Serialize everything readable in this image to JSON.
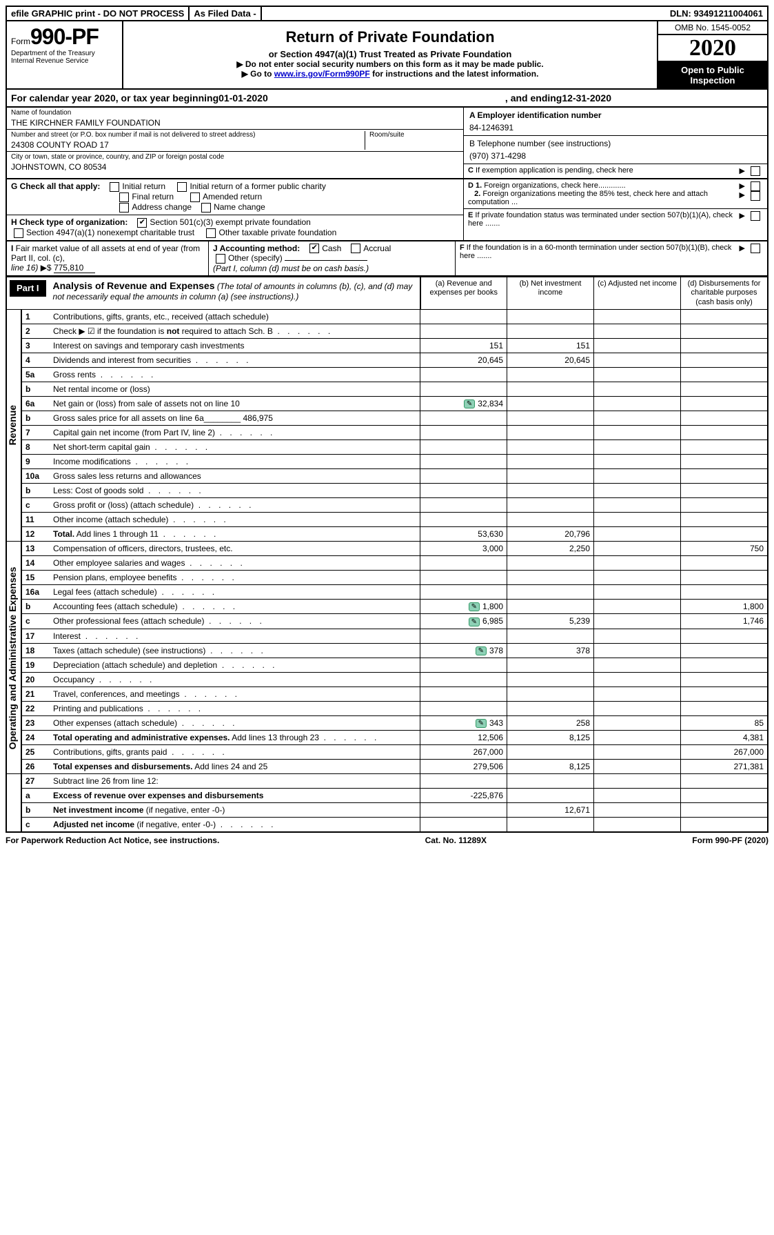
{
  "top": {
    "efile": "efile GRAPHIC print - DO NOT PROCESS",
    "asfiled": "As Filed Data -",
    "dln": "DLN: 93491211004061"
  },
  "form": {
    "prefix": "Form",
    "number": "990-PF",
    "dept": "Department of the Treasury",
    "irs": "Internal Revenue Service"
  },
  "header": {
    "title": "Return of Private Foundation",
    "sub": "or Section 4947(a)(1) Trust Treated as Private Foundation",
    "instr1": "▶ Do not enter social security numbers on this form as it may be made public.",
    "instr2_pre": "▶ Go to ",
    "instr2_link": "www.irs.gov/Form990PF",
    "instr2_post": " for instructions and the latest information.",
    "omb": "OMB No. 1545-0052",
    "year": "2020",
    "inspection": "Open to Public Inspection"
  },
  "cal": {
    "pre": "For calendar year 2020, or tax year beginning ",
    "begin": "01-01-2020",
    "mid": ", and ending ",
    "end": "12-31-2020"
  },
  "id": {
    "name_label": "Name of foundation",
    "name": "THE KIRCHNER FAMILY FOUNDATION",
    "addr_label": "Number and street (or P.O. box number if mail is not delivered to street address)",
    "addr": "24308 COUNTY ROAD 17",
    "room_label": "Room/suite",
    "city_label": "City or town, state or province, country, and ZIP or foreign postal code",
    "city": "JOHNSTOWN, CO  80534",
    "a_label": "A Employer identification number",
    "a_val": "84-1246391",
    "b_label": "B Telephone number (see instructions)",
    "b_val": "(970) 371-4298",
    "c_label": "C If exemption application is pending, check here"
  },
  "g": {
    "label": "G Check all that apply:",
    "opts": [
      "Initial return",
      "Initial return of a former public charity",
      "Final return",
      "Amended return",
      "Address change",
      "Name change"
    ]
  },
  "h": {
    "label": "H Check type of organization:",
    "sec501": "Section 501(c)(3) exempt private foundation",
    "sec4947": "Section 4947(a)(1) nonexempt charitable trust",
    "other_tax": "Other taxable private foundation"
  },
  "d_block": {
    "d1": "D 1. Foreign organizations, check here",
    "d2": "2. Foreign organizations meeting the 85% test, check here and attach computation ...",
    "e": "E If private foundation status was terminated under section 507(b)(1)(A), check here",
    "f": "F If the foundation is in a 60-month termination under section 507(b)(1)(B), check here"
  },
  "i_block": {
    "i_label": "I Fair market value of all assets at end of year (from Part II, col. (c), line 16)",
    "i_val": "775,810",
    "j_label": "J Accounting method:",
    "j_cash": "Cash",
    "j_accrual": "Accrual",
    "j_other": "Other (specify)",
    "j_note": "(Part I, column (d) must be on cash basis.)"
  },
  "part1": {
    "label": "Part I",
    "title": "Analysis of Revenue and Expenses",
    "note": "(The total of amounts in columns (b), (c), and (d) may not necessarily equal the amounts in column (a) (see instructions).)",
    "col_a": "(a) Revenue and expenses per books",
    "col_b": "(b) Net investment income",
    "col_c": "(c) Adjusted net income",
    "col_d": "(d) Disbursements for charitable purposes (cash basis only)"
  },
  "sections": {
    "revenue": "Revenue",
    "opex": "Operating and Administrative Expenses"
  },
  "rows": [
    {
      "n": "1",
      "d": "Contributions, gifts, grants, etc., received (attach schedule)",
      "a": "",
      "b": "",
      "c": "",
      "dd": ""
    },
    {
      "n": "2",
      "d": "Check ▶ ☑ if the foundation is <b>not</b> required to attach Sch. B",
      "dots": true,
      "a": "",
      "b": "",
      "c": "",
      "dd": ""
    },
    {
      "n": "3",
      "d": "Interest on savings and temporary cash investments",
      "a": "151",
      "b": "151",
      "c": "",
      "dd": ""
    },
    {
      "n": "4",
      "d": "Dividends and interest from securities",
      "dots": true,
      "a": "20,645",
      "b": "20,645",
      "c": "",
      "dd": ""
    },
    {
      "n": "5a",
      "d": "Gross rents",
      "dots": true,
      "a": "",
      "b": "",
      "c": "",
      "dd": ""
    },
    {
      "n": "b",
      "d": "Net rental income or (loss)",
      "a": "",
      "b": "",
      "c": "",
      "dd": ""
    },
    {
      "n": "6a",
      "d": "Net gain or (loss) from sale of assets not on line 10",
      "a": "32,834",
      "b": "",
      "c": "",
      "dd": "",
      "icon": true
    },
    {
      "n": "b",
      "d": "Gross sales price for all assets on line 6a________ 486,975",
      "a": "",
      "b": "",
      "c": "",
      "dd": ""
    },
    {
      "n": "7",
      "d": "Capital gain net income (from Part IV, line 2)",
      "dots": true,
      "a": "",
      "b": "",
      "c": "",
      "dd": ""
    },
    {
      "n": "8",
      "d": "Net short-term capital gain",
      "dots": true,
      "a": "",
      "b": "",
      "c": "",
      "dd": ""
    },
    {
      "n": "9",
      "d": "Income modifications",
      "dots": true,
      "a": "",
      "b": "",
      "c": "",
      "dd": ""
    },
    {
      "n": "10a",
      "d": "Gross sales less returns and allowances",
      "a": "",
      "b": "",
      "c": "",
      "dd": ""
    },
    {
      "n": "b",
      "d": "Less: Cost of goods sold",
      "dots": true,
      "a": "",
      "b": "",
      "c": "",
      "dd": ""
    },
    {
      "n": "c",
      "d": "Gross profit or (loss) (attach schedule)",
      "dots": true,
      "a": "",
      "b": "",
      "c": "",
      "dd": ""
    },
    {
      "n": "11",
      "d": "Other income (attach schedule)",
      "dots": true,
      "a": "",
      "b": "",
      "c": "",
      "dd": ""
    },
    {
      "n": "12",
      "d": "<b>Total.</b> Add lines 1 through 11",
      "dots": true,
      "a": "53,630",
      "b": "20,796",
      "c": "",
      "dd": ""
    }
  ],
  "exp_rows": [
    {
      "n": "13",
      "d": "Compensation of officers, directors, trustees, etc.",
      "a": "3,000",
      "b": "2,250",
      "c": "",
      "dd": "750"
    },
    {
      "n": "14",
      "d": "Other employee salaries and wages",
      "dots": true,
      "a": "",
      "b": "",
      "c": "",
      "dd": ""
    },
    {
      "n": "15",
      "d": "Pension plans, employee benefits",
      "dots": true,
      "a": "",
      "b": "",
      "c": "",
      "dd": ""
    },
    {
      "n": "16a",
      "d": "Legal fees (attach schedule)",
      "dots": true,
      "a": "",
      "b": "",
      "c": "",
      "dd": ""
    },
    {
      "n": "b",
      "d": "Accounting fees (attach schedule)",
      "dots": true,
      "a": "1,800",
      "b": "",
      "c": "",
      "dd": "1,800",
      "icon": true
    },
    {
      "n": "c",
      "d": "Other professional fees (attach schedule)",
      "dots": true,
      "a": "6,985",
      "b": "5,239",
      "c": "",
      "dd": "1,746",
      "icon": true
    },
    {
      "n": "17",
      "d": "Interest",
      "dots": true,
      "a": "",
      "b": "",
      "c": "",
      "dd": ""
    },
    {
      "n": "18",
      "d": "Taxes (attach schedule) (see instructions)",
      "dots": true,
      "a": "378",
      "b": "378",
      "c": "",
      "dd": "",
      "icon": true
    },
    {
      "n": "19",
      "d": "Depreciation (attach schedule) and depletion",
      "dots": true,
      "a": "",
      "b": "",
      "c": "",
      "dd": ""
    },
    {
      "n": "20",
      "d": "Occupancy",
      "dots": true,
      "a": "",
      "b": "",
      "c": "",
      "dd": ""
    },
    {
      "n": "21",
      "d": "Travel, conferences, and meetings",
      "dots": true,
      "a": "",
      "b": "",
      "c": "",
      "dd": ""
    },
    {
      "n": "22",
      "d": "Printing and publications",
      "dots": true,
      "a": "",
      "b": "",
      "c": "",
      "dd": ""
    },
    {
      "n": "23",
      "d": "Other expenses (attach schedule)",
      "dots": true,
      "a": "343",
      "b": "258",
      "c": "",
      "dd": "85",
      "icon": true
    },
    {
      "n": "24",
      "d": "<b>Total operating and administrative expenses.</b> Add lines 13 through 23",
      "dots": true,
      "a": "12,506",
      "b": "8,125",
      "c": "",
      "dd": "4,381"
    },
    {
      "n": "25",
      "d": "Contributions, gifts, grants paid",
      "dots": true,
      "a": "267,000",
      "b": "",
      "c": "",
      "dd": "267,000"
    },
    {
      "n": "26",
      "d": "<b>Total expenses and disbursements.</b> Add lines 24 and 25",
      "a": "279,506",
      "b": "8,125",
      "c": "",
      "dd": "271,381"
    }
  ],
  "bottom_rows": [
    {
      "n": "27",
      "d": "Subtract line 26 from line 12:",
      "a": "",
      "b": "",
      "c": "",
      "dd": ""
    },
    {
      "n": "a",
      "d": "<b>Excess of revenue over expenses and disbursements</b>",
      "a": "-225,876",
      "b": "",
      "c": "",
      "dd": ""
    },
    {
      "n": "b",
      "d": "<b>Net investment income</b> (if negative, enter -0-)",
      "a": "",
      "b": "12,671",
      "c": "",
      "dd": ""
    },
    {
      "n": "c",
      "d": "<b>Adjusted net income</b> (if negative, enter -0-)",
      "dots": true,
      "a": "",
      "b": "",
      "c": "",
      "dd": ""
    }
  ],
  "footer": {
    "left": "For Paperwork Reduction Act Notice, see instructions.",
    "mid": "Cat. No. 11289X",
    "right": "Form 990-PF (2020)"
  }
}
